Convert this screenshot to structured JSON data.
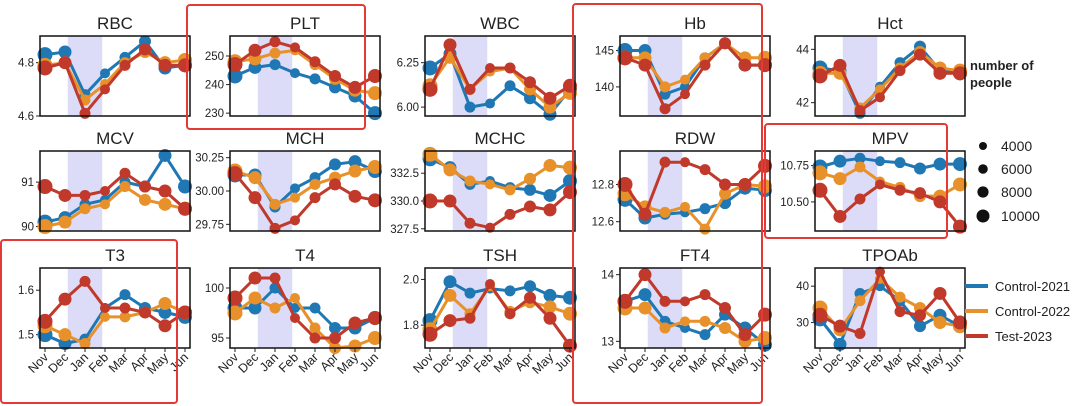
{
  "months": [
    "Nov",
    "Dec",
    "Jan",
    "Feb",
    "Mar",
    "Apr",
    "May",
    "Jun"
  ],
  "colors": {
    "Control-2021": "#1f77b4",
    "Control-2022": "#e8902a",
    "Test-2023": "#c0392b",
    "shade": "#dcdcf8",
    "highlight": "#e53935"
  },
  "size_legend": {
    "title_line1": "number of",
    "title_line2": "people",
    "entries": [
      "4000",
      "6000",
      "8000",
      "10000"
    ]
  },
  "series_legend": [
    "Control-2021",
    "Control-2022",
    "Test-2023"
  ],
  "chart_data": [
    {
      "type": "line",
      "title": "RBC",
      "ylim": [
        4.6,
        4.9
      ],
      "yticks": [
        "4.8",
        "4.6"
      ],
      "ytick_values": [
        4.8,
        4.6
      ],
      "highlighted": false,
      "series": [
        {
          "name": "Control-2021",
          "values": [
            4.83,
            4.84,
            4.68,
            4.76,
            4.82,
            4.88,
            4.78,
            4.79
          ]
        },
        {
          "name": "Control-2022",
          "values": [
            4.79,
            4.8,
            4.66,
            4.72,
            4.8,
            4.84,
            4.8,
            4.81
          ]
        },
        {
          "name": "Test-2023",
          "values": [
            4.78,
            4.8,
            4.61,
            4.7,
            4.79,
            4.85,
            4.79,
            4.79
          ]
        }
      ]
    },
    {
      "type": "line",
      "title": "PLT",
      "ylim": [
        229,
        257
      ],
      "yticks": [
        "250",
        "240",
        "230"
      ],
      "ytick_values": [
        250,
        240,
        230
      ],
      "highlighted": true,
      "series": [
        {
          "name": "Control-2021",
          "values": [
            243,
            246,
            247,
            244,
            242,
            239,
            236,
            230
          ]
        },
        {
          "name": "Control-2022",
          "values": [
            248,
            249,
            251,
            252,
            247,
            242,
            238,
            237
          ]
        },
        {
          "name": "Test-2023",
          "values": [
            247,
            252,
            255,
            253,
            248,
            243,
            239,
            243
          ]
        }
      ]
    },
    {
      "type": "line",
      "title": "WBC",
      "ylim": [
        5.95,
        6.4
      ],
      "yticks": [
        "6.25",
        "6.00"
      ],
      "ytick_values": [
        6.25,
        6.0
      ],
      "highlighted": false,
      "series": [
        {
          "name": "Control-2021",
          "values": [
            6.22,
            6.3,
            6.0,
            6.02,
            6.12,
            6.05,
            5.96,
            6.1
          ]
        },
        {
          "name": "Control-2022",
          "values": [
            6.12,
            6.28,
            6.1,
            6.2,
            6.22,
            6.1,
            6.0,
            6.08
          ]
        },
        {
          "name": "Test-2023",
          "values": [
            6.1,
            6.35,
            6.1,
            6.22,
            6.22,
            6.14,
            6.05,
            6.12
          ]
        }
      ]
    },
    {
      "type": "line",
      "title": "Hb",
      "ylim": [
        136,
        147
      ],
      "yticks": [
        "145",
        "140"
      ],
      "ytick_values": [
        145,
        140
      ],
      "highlighted": true,
      "series": [
        {
          "name": "Control-2021",
          "values": [
            145,
            145,
            139,
            140,
            144,
            146,
            143,
            143
          ]
        },
        {
          "name": "Control-2022",
          "values": [
            144,
            144,
            140,
            141,
            144,
            146,
            144,
            144
          ]
        },
        {
          "name": "Test-2023",
          "values": [
            144,
            143,
            137,
            139,
            143,
            146,
            143,
            143
          ]
        }
      ]
    },
    {
      "type": "line",
      "title": "Hct",
      "ylim": [
        41.5,
        44.5
      ],
      "yticks": [
        "44",
        "42"
      ],
      "ytick_values": [
        44,
        42
      ],
      "highlighted": false,
      "series": [
        {
          "name": "Control-2021",
          "values": [
            43.3,
            43.2,
            41.6,
            42.6,
            43.5,
            44.1,
            43.2,
            43.1
          ]
        },
        {
          "name": "Control-2022",
          "values": [
            43.1,
            43.1,
            41.8,
            42.5,
            43.3,
            43.9,
            43.3,
            43.2
          ]
        },
        {
          "name": "Test-2023",
          "values": [
            43.0,
            43.4,
            41.7,
            42.2,
            43.2,
            43.8,
            43.1,
            43.1
          ]
        }
      ]
    },
    {
      "type": "line",
      "title": "MCV",
      "ylim": [
        89.9,
        91.7
      ],
      "yticks": [
        "91",
        "90"
      ],
      "ytick_values": [
        91,
        90
      ],
      "highlighted": false,
      "series": [
        {
          "name": "Control-2021",
          "values": [
            90.1,
            90.2,
            90.5,
            90.6,
            91.0,
            90.9,
            91.6,
            90.9
          ]
        },
        {
          "name": "Control-2022",
          "values": [
            90.0,
            90.1,
            90.4,
            90.5,
            90.9,
            90.6,
            90.5,
            90.4
          ]
        },
        {
          "name": "Test-2023",
          "values": [
            90.9,
            90.7,
            90.7,
            90.8,
            91.2,
            90.9,
            90.8,
            90.4
          ]
        }
      ]
    },
    {
      "type": "line",
      "title": "MCH",
      "ylim": [
        29.7,
        30.3
      ],
      "yticks": [
        "30.25",
        "30.00",
        "29.75"
      ],
      "ytick_values": [
        30.25,
        30.0,
        29.75
      ],
      "highlighted": false,
      "series": [
        {
          "name": "Control-2021",
          "values": [
            30.12,
            30.12,
            29.88,
            30.02,
            30.1,
            30.2,
            30.22,
            30.15
          ]
        },
        {
          "name": "Control-2022",
          "values": [
            30.15,
            30.1,
            29.9,
            29.95,
            30.05,
            30.1,
            30.15,
            30.18
          ]
        },
        {
          "name": "Test-2023",
          "values": [
            30.13,
            29.95,
            29.72,
            29.78,
            29.95,
            30.05,
            29.96,
            29.93
          ]
        }
      ]
    },
    {
      "type": "line",
      "title": "MCHC",
      "ylim": [
        327.3,
        334.5
      ],
      "yticks": [
        "332.5",
        "330.0",
        "327.5"
      ],
      "ytick_values": [
        332.5,
        330.0,
        327.5
      ],
      "highlighted": false,
      "series": [
        {
          "name": "Control-2021",
          "values": [
            333.8,
            333.0,
            331.5,
            331.8,
            331.2,
            331.0,
            330.5,
            331.8
          ]
        },
        {
          "name": "Control-2022",
          "values": [
            334.2,
            332.8,
            331.8,
            331.5,
            331.0,
            332.0,
            333.2,
            333.0
          ]
        },
        {
          "name": "Test-2023",
          "values": [
            330.0,
            330.0,
            328.0,
            327.6,
            328.8,
            329.5,
            329.2,
            330.8
          ]
        }
      ]
    },
    {
      "type": "line",
      "title": "RDW",
      "ylim": [
        12.55,
        12.98
      ],
      "yticks": [
        "12.8",
        "12.6"
      ],
      "ytick_values": [
        12.8,
        12.6
      ],
      "highlighted": true,
      "series": [
        {
          "name": "Control-2021",
          "values": [
            12.72,
            12.62,
            12.64,
            12.65,
            12.67,
            12.7,
            12.78,
            12.77
          ]
        },
        {
          "name": "Control-2022",
          "values": [
            12.75,
            12.68,
            12.65,
            12.68,
            12.56,
            12.75,
            12.8,
            12.79
          ]
        },
        {
          "name": "Test-2023",
          "values": [
            12.8,
            12.64,
            12.92,
            12.92,
            12.88,
            12.8,
            12.8,
            12.9
          ]
        }
      ]
    },
    {
      "type": "line",
      "title": "MPV",
      "ylim": [
        10.3,
        10.85
      ],
      "yticks": [
        "10.75",
        "10.50"
      ],
      "ytick_values": [
        10.75,
        10.5
      ],
      "highlighted": true,
      "series": [
        {
          "name": "Control-2021",
          "values": [
            10.74,
            10.78,
            10.8,
            10.78,
            10.77,
            10.73,
            10.76,
            10.76
          ]
        },
        {
          "name": "Control-2022",
          "values": [
            10.7,
            10.66,
            10.74,
            10.64,
            10.6,
            10.54,
            10.54,
            10.62
          ]
        },
        {
          "name": "Test-2023",
          "values": [
            10.58,
            10.4,
            10.52,
            10.62,
            10.58,
            10.56,
            10.5,
            10.33
          ]
        }
      ]
    },
    {
      "type": "line",
      "title": "T3",
      "ylim": [
        1.47,
        1.65
      ],
      "yticks": [
        "1.6",
        "1.5"
      ],
      "ytick_values": [
        1.6,
        1.5
      ],
      "highlighted": true,
      "series": [
        {
          "name": "Control-2021",
          "values": [
            1.5,
            1.48,
            1.49,
            1.56,
            1.59,
            1.56,
            1.55,
            1.54
          ]
        },
        {
          "name": "Control-2022",
          "values": [
            1.52,
            1.5,
            1.48,
            1.54,
            1.54,
            1.55,
            1.57,
            1.55
          ]
        },
        {
          "name": "Test-2023",
          "values": [
            1.53,
            1.58,
            1.62,
            1.56,
            1.56,
            1.55,
            1.52,
            1.55
          ]
        }
      ]
    },
    {
      "type": "line",
      "title": "T4",
      "ylim": [
        94,
        102
      ],
      "yticks": [
        "100",
        "95"
      ],
      "ytick_values": [
        100,
        95
      ],
      "highlighted": false,
      "series": [
        {
          "name": "Control-2021",
          "values": [
            98,
            98,
            100,
            98,
            98,
            96,
            96,
            97
          ]
        },
        {
          "name": "Control-2022",
          "values": [
            97.5,
            99,
            98,
            99,
            96,
            94,
            94.2,
            95
          ]
        },
        {
          "name": "Test-2023",
          "values": [
            99,
            101,
            101,
            97,
            95,
            95,
            96.5,
            97
          ]
        }
      ]
    },
    {
      "type": "line",
      "title": "TSH",
      "ylim": [
        1.7,
        2.05
      ],
      "yticks": [
        "2.0",
        "1.8"
      ],
      "ytick_values": [
        2.0,
        1.8
      ],
      "highlighted": false,
      "series": [
        {
          "name": "Control-2021",
          "values": [
            1.82,
            1.99,
            1.94,
            1.96,
            1.95,
            1.97,
            1.93,
            1.92
          ]
        },
        {
          "name": "Control-2022",
          "values": [
            1.78,
            1.93,
            1.85,
            1.97,
            1.86,
            1.9,
            1.88,
            1.85
          ]
        },
        {
          "name": "Test-2023",
          "values": [
            1.76,
            1.82,
            1.83,
            1.98,
            1.85,
            1.92,
            1.83,
            1.71
          ]
        }
      ]
    },
    {
      "type": "line",
      "title": "FT4",
      "ylim": [
        12.9,
        14.1
      ],
      "yticks": [
        "14",
        "13"
      ],
      "ytick_values": [
        14,
        13
      ],
      "highlighted": true,
      "series": [
        {
          "name": "Control-2021",
          "values": [
            13.6,
            13.7,
            13.3,
            13.2,
            13.1,
            13.4,
            13.2,
            12.95
          ]
        },
        {
          "name": "Control-2022",
          "values": [
            13.5,
            13.5,
            13.2,
            13.3,
            13.3,
            13.2,
            13.0,
            13.05
          ]
        },
        {
          "name": "Test-2023",
          "values": [
            13.6,
            14.0,
            13.6,
            13.6,
            13.7,
            13.5,
            13.1,
            13.4
          ]
        }
      ]
    },
    {
      "type": "line",
      "title": "TPOAb",
      "ylim": [
        23,
        45
      ],
      "yticks": [
        "40",
        "30"
      ],
      "ytick_values": [
        40,
        30
      ],
      "highlighted": false,
      "series": [
        {
          "name": "Control-2021",
          "values": [
            31,
            24,
            38,
            40,
            36,
            29,
            32,
            29
          ]
        },
        {
          "name": "Control-2022",
          "values": [
            34,
            28,
            36,
            42,
            37,
            34,
            30,
            29
          ]
        },
        {
          "name": "Test-2023",
          "values": [
            32,
            29,
            27,
            44,
            33,
            32,
            38,
            30
          ]
        }
      ]
    }
  ]
}
